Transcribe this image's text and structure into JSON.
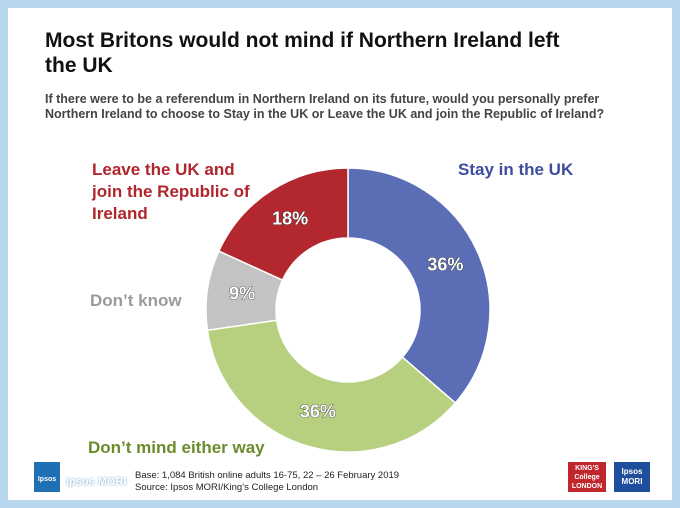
{
  "chart_data": {
    "type": "donut",
    "title": "Most Britons would not mind if Northern Ireland left the UK",
    "subtitle": "If there were to be a referendum in Northern Ireland on its future, would you personally prefer Northern Ireland to choose to Stay in the UK or Leave the UK and join the Republic of Ireland?",
    "categories": [
      "Stay in the UK",
      "Don’t mind either way",
      "Don’t know",
      "Leave the UK and join the Republic of Ireland"
    ],
    "values": [
      36,
      36,
      9,
      18
    ],
    "value_labels": [
      "36%",
      "36%",
      "9%",
      "18%"
    ],
    "colors": [
      "#5b6db5",
      "#b7d07f",
      "#c3c3c3",
      "#b3272e"
    ],
    "label_colors": [
      "#3e4d9e",
      "#6b8b2c",
      "#9b9b9b",
      "#b0262d"
    ],
    "notes": [
      "Base: 1,084 British online adults 16-75, 22 – 26 February 2019",
      "Source: Ipsos MORI/King’s College London"
    ],
    "logos": [
      "Ipsos",
      "Ipsos MORI",
      "KING'S College LONDON",
      "Ipsos MORI"
    ]
  }
}
